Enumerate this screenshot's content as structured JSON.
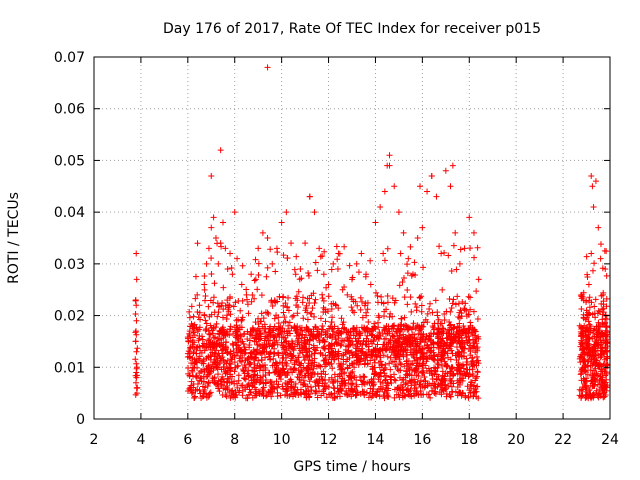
{
  "chart_data": {
    "type": "scatter",
    "title": "Day 176 of 2017, Rate Of TEC Index for receiver p015",
    "xlabel": "GPS time / hours",
    "ylabel": "ROTI / TECUs",
    "xlim": [
      2,
      24
    ],
    "ylim": [
      0,
      0.07
    ],
    "xticks": [
      2,
      4,
      6,
      8,
      10,
      12,
      14,
      16,
      18,
      20,
      22,
      24
    ],
    "yticks": [
      0,
      0.01,
      0.02,
      0.03,
      0.04,
      0.05,
      0.06,
      0.07
    ],
    "xtick_labels": [
      "2",
      "4",
      "6",
      "8",
      "10",
      "12",
      "14",
      "16",
      "18",
      "20",
      "22",
      "24"
    ],
    "ytick_labels": [
      "0",
      "0.01",
      "0.02",
      "0.03",
      "0.04",
      "0.05",
      "0.06",
      "0.07"
    ],
    "grid": true,
    "marker": "+",
    "color": "#ff0000",
    "series": [
      {
        "name": "ROTI",
        "x": [
          3.8,
          3.82,
          3.78,
          3.81,
          3.79,
          3.83,
          3.8,
          3.81,
          3.79,
          3.82,
          3.8,
          3.78,
          3.81,
          3.83,
          6.0,
          6.2,
          6.4,
          6.5,
          6.7,
          6.8,
          6.9,
          7.0,
          7.1,
          7.2,
          7.3,
          7.4,
          7.5,
          7.6,
          7.7,
          7.8,
          7.9,
          8.0,
          8.1,
          8.3,
          8.5,
          8.7,
          8.9,
          9.0,
          9.2,
          9.4,
          9.6,
          9.8,
          10.0,
          10.2,
          10.4,
          10.6,
          10.8,
          11.0,
          11.2,
          11.4,
          11.6,
          11.8,
          12.0,
          12.2,
          12.4,
          12.6,
          12.8,
          13.0,
          13.2,
          13.4,
          13.6,
          13.8,
          14.0,
          14.2,
          14.4,
          14.5,
          14.6,
          14.8,
          15.0,
          15.2,
          15.4,
          15.6,
          15.8,
          16.0,
          16.2,
          16.4,
          16.6,
          16.8,
          17.0,
          17.2,
          17.4,
          17.6,
          17.8,
          18.0,
          18.2,
          18.4,
          22.8,
          22.9,
          23.0,
          23.1,
          23.2,
          23.3,
          23.4,
          23.5,
          23.6,
          23.7,
          23.8,
          7.4,
          9.4,
          14.6,
          16.4,
          17.3,
          23.2,
          23.25,
          11.2,
          7.0,
          15.9
        ],
        "y": [
          0.032,
          0.027,
          0.023,
          0.019,
          0.017,
          0.01,
          0.009,
          0.008,
          0.007,
          0.006,
          0.022,
          0.015,
          0.013,
          0.005,
          0.012,
          0.018,
          0.024,
          0.022,
          0.026,
          0.03,
          0.033,
          0.037,
          0.039,
          0.035,
          0.03,
          0.034,
          0.038,
          0.033,
          0.029,
          0.032,
          0.028,
          0.04,
          0.031,
          0.026,
          0.024,
          0.028,
          0.027,
          0.033,
          0.036,
          0.035,
          0.03,
          0.033,
          0.038,
          0.04,
          0.034,
          0.028,
          0.029,
          0.034,
          0.043,
          0.04,
          0.033,
          0.028,
          0.026,
          0.03,
          0.029,
          0.025,
          0.024,
          0.027,
          0.03,
          0.032,
          0.028,
          0.026,
          0.038,
          0.041,
          0.044,
          0.049,
          0.051,
          0.045,
          0.04,
          0.036,
          0.031,
          0.028,
          0.035,
          0.037,
          0.044,
          0.047,
          0.043,
          0.032,
          0.048,
          0.045,
          0.036,
          0.03,
          0.033,
          0.039,
          0.036,
          0.027,
          0.024,
          0.018,
          0.021,
          0.026,
          0.032,
          0.041,
          0.046,
          0.037,
          0.031,
          0.024,
          0.016,
          0.052,
          0.068,
          0.049,
          0.047,
          0.049,
          0.047,
          0.045,
          0.043,
          0.047,
          0.045
        ]
      }
    ]
  }
}
